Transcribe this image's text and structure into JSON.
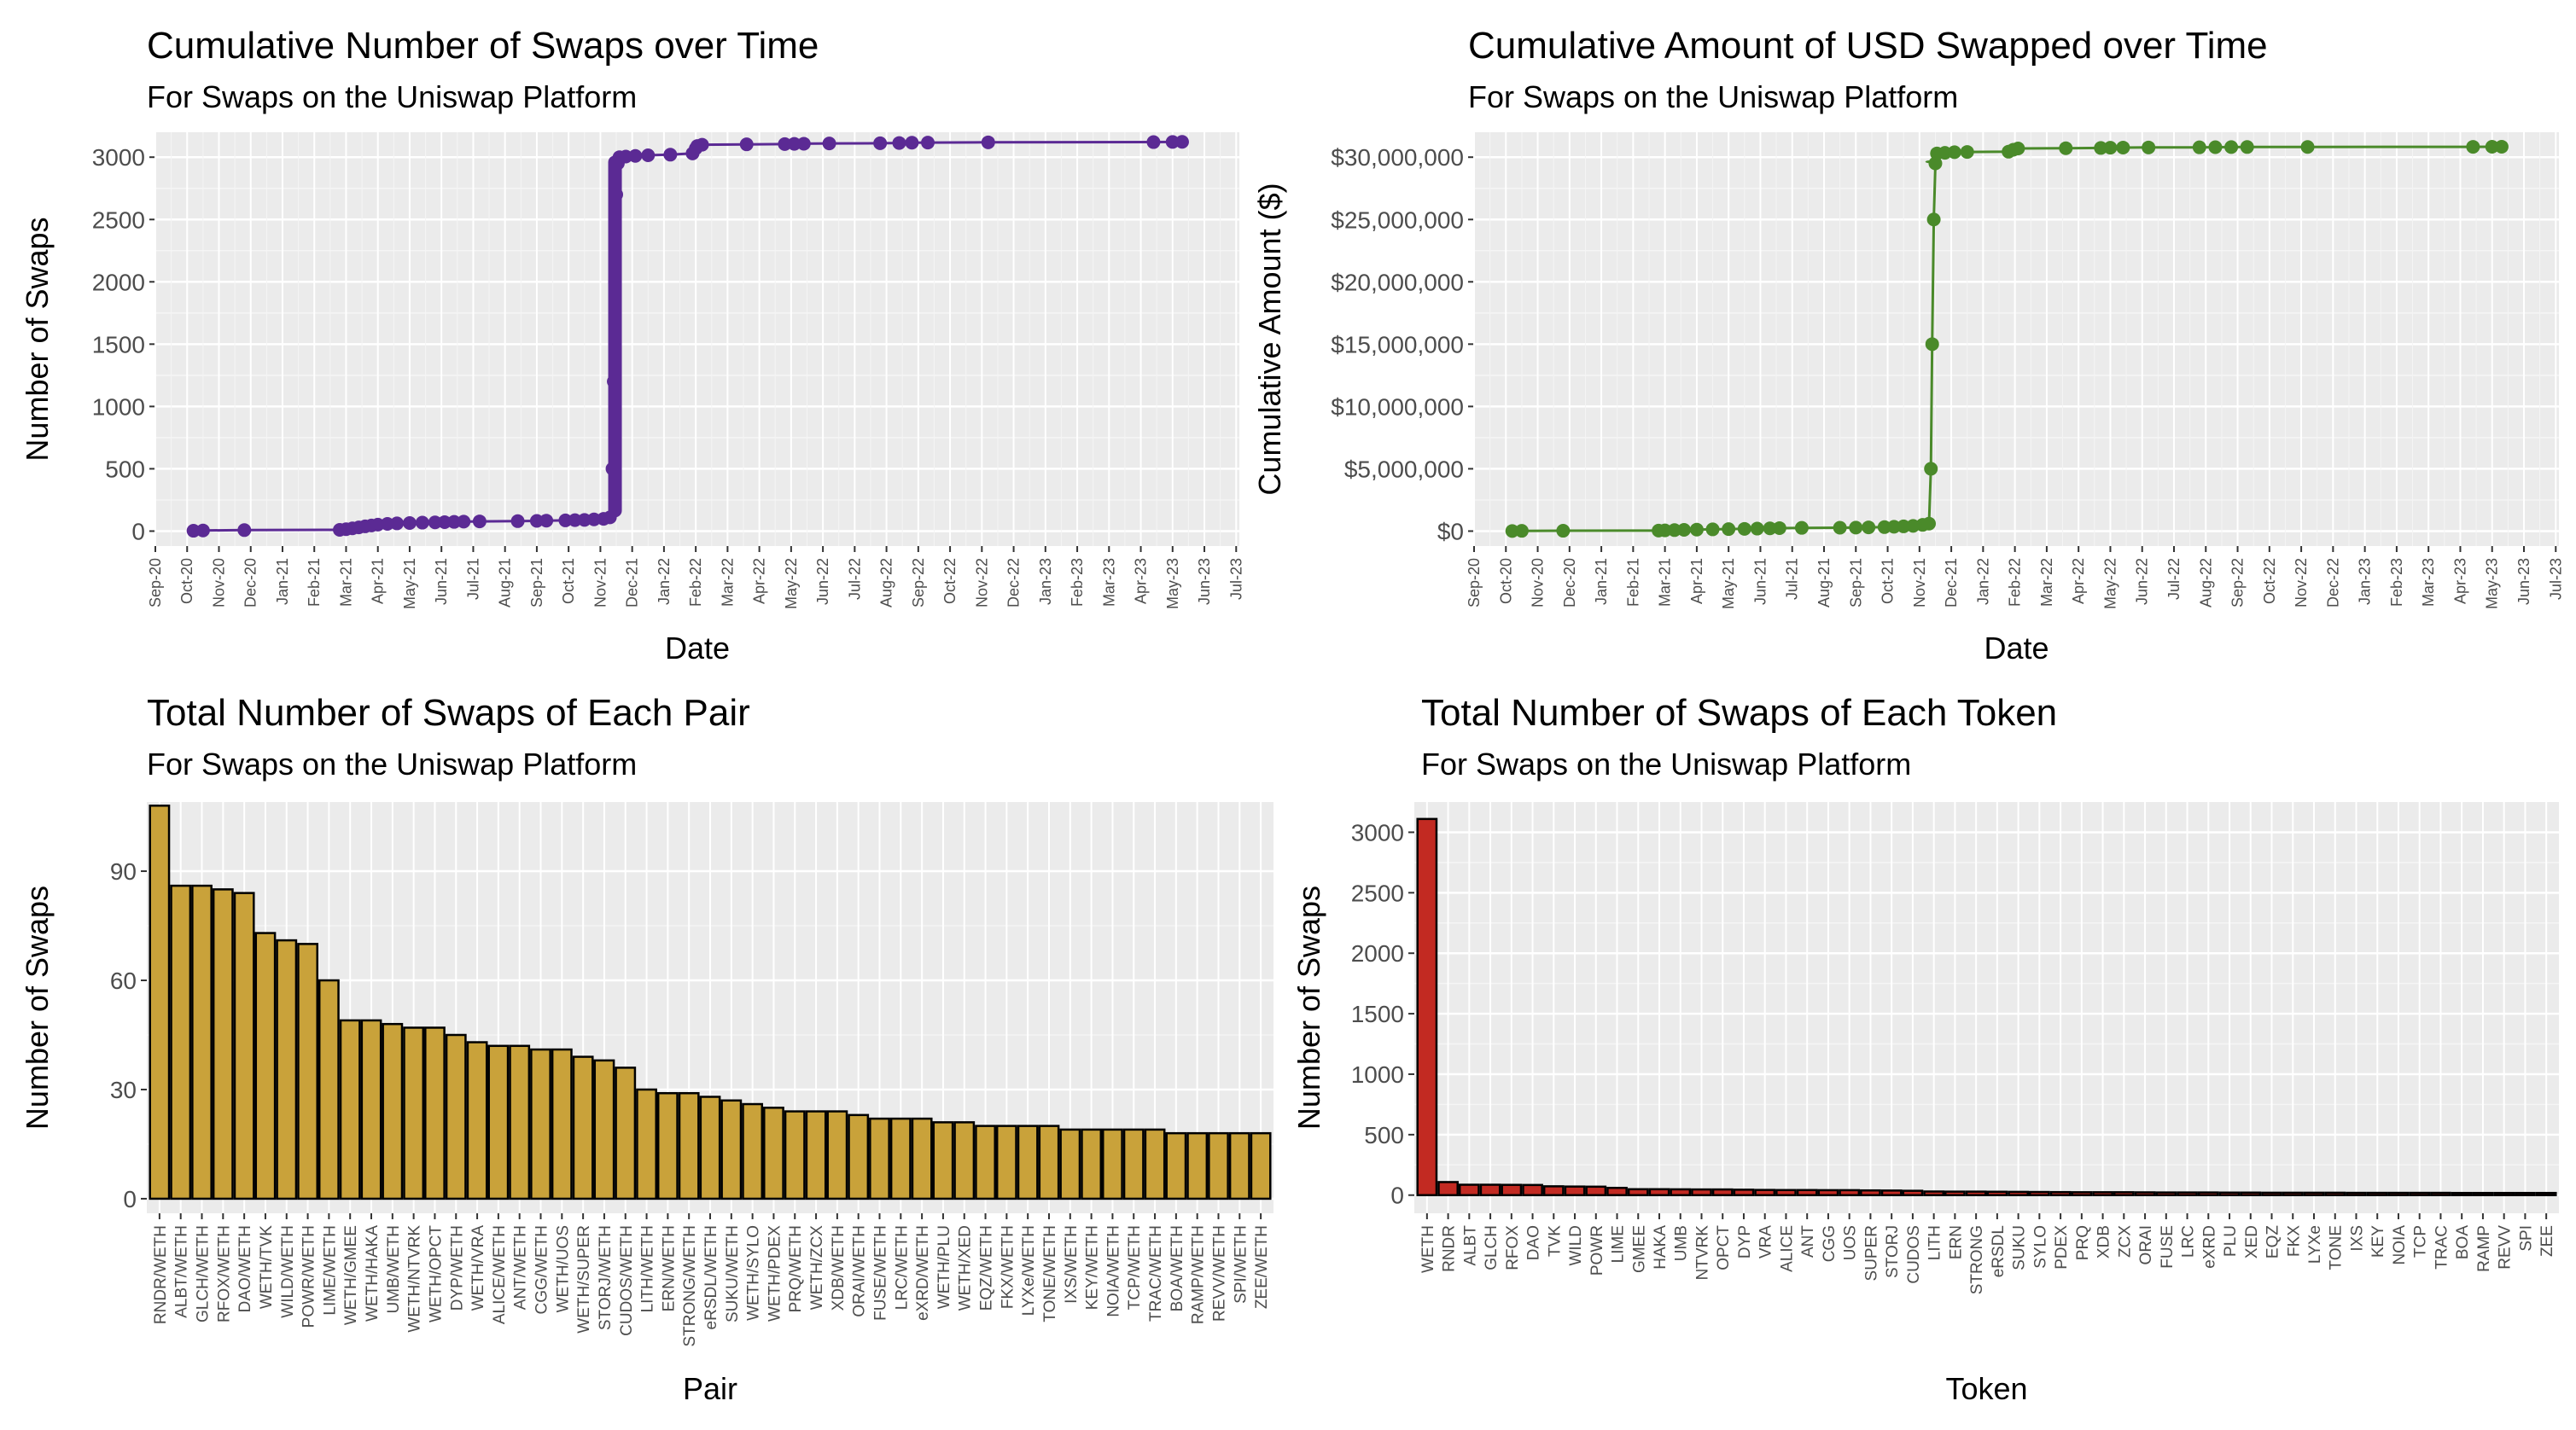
{
  "colors": {
    "panel": "#ebebeb",
    "grid_major": "#ffffff",
    "grid_minor": "#f5f5f5",
    "purple": "#5b2a94",
    "green": "#4a8a2a",
    "gold": "#c9a23a",
    "red": "#c22a22",
    "bar_outline": "#000000"
  },
  "chart_data": [
    {
      "id": "cum_swaps",
      "type": "line",
      "title": "Cumulative Number of Swaps over Time",
      "subtitle": "For Swaps on the Uniswap Platform",
      "xlabel": "Date",
      "ylabel": "Number of Swaps",
      "x_ticks": [
        "Sep-20",
        "Oct-20",
        "Nov-20",
        "Dec-20",
        "Jan-21",
        "Feb-21",
        "Mar-21",
        "Apr-21",
        "May-21",
        "Jun-21",
        "Jul-21",
        "Aug-21",
        "Sep-21",
        "Oct-21",
        "Nov-21",
        "Dec-21",
        "Jan-22",
        "Feb-22",
        "Mar-22",
        "Apr-22",
        "May-22",
        "Jun-22",
        "Jul-22",
        "Aug-22",
        "Sep-22",
        "Oct-22",
        "Nov-22",
        "Dec-22",
        "Jan-23",
        "Feb-23",
        "Mar-23",
        "Apr-23",
        "May-23",
        "Jun-23",
        "Jul-23"
      ],
      "xlim": [
        0,
        34.1
      ],
      "ylim": [
        -120,
        3200
      ],
      "y_ticks": [
        0,
        500,
        1000,
        1500,
        2000,
        2500,
        3000
      ],
      "y_tick_labels": [
        "0",
        "500",
        "1000",
        "1500",
        "2000",
        "2500",
        "3000"
      ],
      "points": [
        [
          1.2,
          3
        ],
        [
          1.5,
          5
        ],
        [
          2.8,
          8
        ],
        [
          5.8,
          10
        ],
        [
          6.0,
          15
        ],
        [
          6.2,
          22
        ],
        [
          6.4,
          30
        ],
        [
          6.6,
          38
        ],
        [
          6.8,
          45
        ],
        [
          7.0,
          52
        ],
        [
          7.3,
          58
        ],
        [
          7.6,
          62
        ],
        [
          8.0,
          65
        ],
        [
          8.4,
          68
        ],
        [
          8.8,
          70
        ],
        [
          9.1,
          72
        ],
        [
          9.4,
          74
        ],
        [
          9.7,
          76
        ],
        [
          10.2,
          78
        ],
        [
          11.4,
          80
        ],
        [
          12.0,
          82
        ],
        [
          12.3,
          84
        ],
        [
          12.9,
          86
        ],
        [
          13.2,
          88
        ],
        [
          13.5,
          90
        ],
        [
          13.8,
          94
        ],
        [
          14.1,
          98
        ],
        [
          14.3,
          110
        ],
        [
          14.38,
          500
        ],
        [
          14.42,
          1200
        ],
        [
          14.46,
          2000
        ],
        [
          14.5,
          2700
        ],
        [
          14.55,
          2950
        ],
        [
          14.6,
          3000
        ],
        [
          14.8,
          3005
        ],
        [
          15.1,
          3010
        ],
        [
          15.5,
          3015
        ],
        [
          16.2,
          3020
        ],
        [
          16.9,
          3030
        ],
        [
          17.0,
          3070
        ],
        [
          17.05,
          3090
        ],
        [
          17.2,
          3100
        ],
        [
          18.6,
          3103
        ],
        [
          19.8,
          3105
        ],
        [
          20.1,
          3107
        ],
        [
          20.4,
          3108
        ],
        [
          21.2,
          3110
        ],
        [
          22.8,
          3112
        ],
        [
          23.4,
          3114
        ],
        [
          23.8,
          3116
        ],
        [
          24.3,
          3117
        ],
        [
          26.2,
          3119
        ],
        [
          31.4,
          3121
        ],
        [
          32.0,
          3122
        ],
        [
          32.3,
          3123
        ]
      ],
      "line_color": "#5b2a94"
    },
    {
      "id": "cum_usd",
      "type": "line",
      "title": "Cumulative Amount of USD Swapped over Time",
      "subtitle": "For Swaps on the Uniswap Platform",
      "xlabel": "Date",
      "ylabel": "Cumulative Amount ($)",
      "x_ticks": [
        "Sep-20",
        "Oct-20",
        "Nov-20",
        "Dec-20",
        "Jan-21",
        "Feb-21",
        "Mar-21",
        "Apr-21",
        "May-21",
        "Jun-21",
        "Jul-21",
        "Aug-21",
        "Sep-21",
        "Oct-21",
        "Nov-21",
        "Dec-21",
        "Jan-22",
        "Feb-22",
        "Mar-22",
        "Apr-22",
        "May-22",
        "Jun-22",
        "Jul-22",
        "Aug-22",
        "Sep-22",
        "Oct-22",
        "Nov-22",
        "Dec-22",
        "Jan-23",
        "Feb-23",
        "Mar-23",
        "Apr-23",
        "May-23",
        "Jun-23",
        "Jul-23"
      ],
      "xlim": [
        0,
        34.1
      ],
      "ylim": [
        -1200000,
        32000000
      ],
      "y_ticks": [
        0,
        5000000,
        10000000,
        15000000,
        20000000,
        25000000,
        30000000
      ],
      "y_tick_labels": [
        "$0",
        "$5,000,000",
        "$10,000,000",
        "$15,000,000",
        "$20,000,000",
        "$25,000,000",
        "$30,000,000"
      ],
      "points": [
        [
          1.2,
          10000
        ],
        [
          1.5,
          20000
        ],
        [
          2.8,
          30000
        ],
        [
          5.8,
          40000
        ],
        [
          6.0,
          60000
        ],
        [
          6.3,
          80000
        ],
        [
          6.6,
          100000
        ],
        [
          7.0,
          120000
        ],
        [
          7.5,
          140000
        ],
        [
          8.0,
          160000
        ],
        [
          8.5,
          180000
        ],
        [
          8.9,
          200000
        ],
        [
          9.3,
          220000
        ],
        [
          9.6,
          240000
        ],
        [
          10.3,
          260000
        ],
        [
          11.5,
          270000
        ],
        [
          12.0,
          280000
        ],
        [
          12.4,
          300000
        ],
        [
          12.9,
          320000
        ],
        [
          13.2,
          350000
        ],
        [
          13.5,
          380000
        ],
        [
          13.8,
          420000
        ],
        [
          14.1,
          500000
        ],
        [
          14.3,
          600000
        ],
        [
          14.36,
          5000000
        ],
        [
          14.4,
          15000000
        ],
        [
          14.45,
          25000000
        ],
        [
          14.5,
          29500000
        ],
        [
          14.55,
          30300000
        ],
        [
          14.8,
          30350000
        ],
        [
          15.1,
          30400000
        ],
        [
          15.5,
          30420000
        ],
        [
          16.8,
          30440000
        ],
        [
          16.95,
          30600000
        ],
        [
          17.1,
          30700000
        ],
        [
          18.6,
          30720000
        ],
        [
          19.7,
          30740000
        ],
        [
          20.0,
          30760000
        ],
        [
          20.4,
          30770000
        ],
        [
          21.2,
          30780000
        ],
        [
          22.8,
          30790000
        ],
        [
          23.3,
          30800000
        ],
        [
          23.8,
          30810000
        ],
        [
          24.3,
          30815000
        ],
        [
          26.2,
          30820000
        ],
        [
          31.4,
          30830000
        ],
        [
          32.0,
          30835000
        ],
        [
          32.3,
          30840000
        ]
      ],
      "line_color": "#4a8a2a"
    },
    {
      "id": "pairs",
      "type": "bar",
      "title": "Total Number of Swaps of Each Pair",
      "subtitle": "For Swaps on the Uniswap Platform",
      "xlabel": "Pair",
      "ylabel": "Number of Swaps",
      "ylim": [
        -4,
        109
      ],
      "y_ticks": [
        0,
        30,
        60,
        90
      ],
      "y_tick_labels": [
        "0",
        "30",
        "60",
        "90"
      ],
      "categories": [
        "RNDR/WETH",
        "ALBT/WETH",
        "GLCH/WETH",
        "RFOX/WETH",
        "DAO/WETH",
        "WETH/TVK",
        "WILD/WETH",
        "POWR/WETH",
        "LIME/WETH",
        "WETH/GMEE",
        "WETH/HAKA",
        "UMB/WETH",
        "WETH/NTVRK",
        "WETH/OPCT",
        "DYP/WETH",
        "WETH/VRA",
        "ALICE/WETH",
        "ANT/WETH",
        "CGG/WETH",
        "WETH/UOS",
        "WETH/SUPER",
        "STORJ/WETH",
        "CUDOS/WETH",
        "LITH/WETH",
        "ERN/WETH",
        "STRONG/WETH",
        "eRSDL/WETH",
        "SUKU/WETH",
        "WETH/SYLO",
        "WETH/PDEX",
        "PRQ/WETH",
        "WETH/ZCX",
        "XDB/WETH",
        "ORAI/WETH",
        "FUSE/WETH",
        "LRC/WETH",
        "eXRD/WETH",
        "WETH/PLU",
        "WETH/XED",
        "EQZ/WETH",
        "FKX/WETH",
        "LYXe/WETH",
        "TONE/WETH",
        "IXS/WETH",
        "KEY/WETH",
        "NOIA/WETH",
        "TCP/WETH",
        "TRAC/WETH",
        "BOA/WETH",
        "RAMP/WETH",
        "REVV/WETH",
        "SPI/WETH",
        "ZEE/WETH"
      ],
      "values": [
        108,
        86,
        86,
        85,
        84,
        73,
        71,
        70,
        60,
        49,
        49,
        48,
        47,
        47,
        45,
        43,
        42,
        42,
        41,
        41,
        39,
        38,
        36,
        30,
        29,
        29,
        28,
        27,
        26,
        25,
        24,
        24,
        24,
        23,
        22,
        22,
        22,
        21,
        21,
        20,
        20,
        20,
        20,
        19,
        19,
        19,
        19,
        19,
        18,
        18,
        18,
        18,
        18
      ],
      "fill": "#c9a23a"
    },
    {
      "id": "tokens",
      "type": "bar",
      "title": "Total Number of Swaps of Each Token",
      "subtitle": "For Swaps on the Uniswap Platform",
      "xlabel": "Token",
      "ylabel": "Number of Swaps",
      "ylim": [
        -150,
        3250
      ],
      "y_ticks": [
        0,
        500,
        1000,
        1500,
        2000,
        2500,
        3000
      ],
      "y_tick_labels": [
        "0",
        "500",
        "1000",
        "1500",
        "2000",
        "2500",
        "3000"
      ],
      "categories": [
        "WETH",
        "RNDR",
        "ALBT",
        "GLCH",
        "RFOX",
        "DAO",
        "TVK",
        "WILD",
        "POWR",
        "LIME",
        "GMEE",
        "HAKA",
        "UMB",
        "NTVRK",
        "OPCT",
        "DYP",
        "VRA",
        "ALICE",
        "ANT",
        "CGG",
        "UOS",
        "SUPER",
        "STORJ",
        "CUDOS",
        "LITH",
        "ERN",
        "STRONG",
        "eRSDL",
        "SUKU",
        "SYLO",
        "PDEX",
        "PRQ",
        "XDB",
        "ZCX",
        "ORAI",
        "FUSE",
        "LRC",
        "eXRD",
        "PLU",
        "XED",
        "EQZ",
        "FKX",
        "LYXe",
        "TONE",
        "IXS",
        "KEY",
        "NOIA",
        "TCP",
        "TRAC",
        "BOA",
        "RAMP",
        "REVV",
        "SPI",
        "ZEE"
      ],
      "values": [
        3110,
        108,
        86,
        86,
        85,
        84,
        73,
        71,
        70,
        60,
        49,
        49,
        48,
        47,
        47,
        45,
        43,
        42,
        42,
        41,
        41,
        39,
        38,
        36,
        30,
        29,
        29,
        28,
        27,
        26,
        25,
        24,
        24,
        24,
        23,
        22,
        22,
        22,
        21,
        21,
        20,
        20,
        20,
        20,
        19,
        19,
        19,
        19,
        19,
        18,
        18,
        18,
        18,
        18
      ],
      "fill": "#c22a22"
    }
  ]
}
